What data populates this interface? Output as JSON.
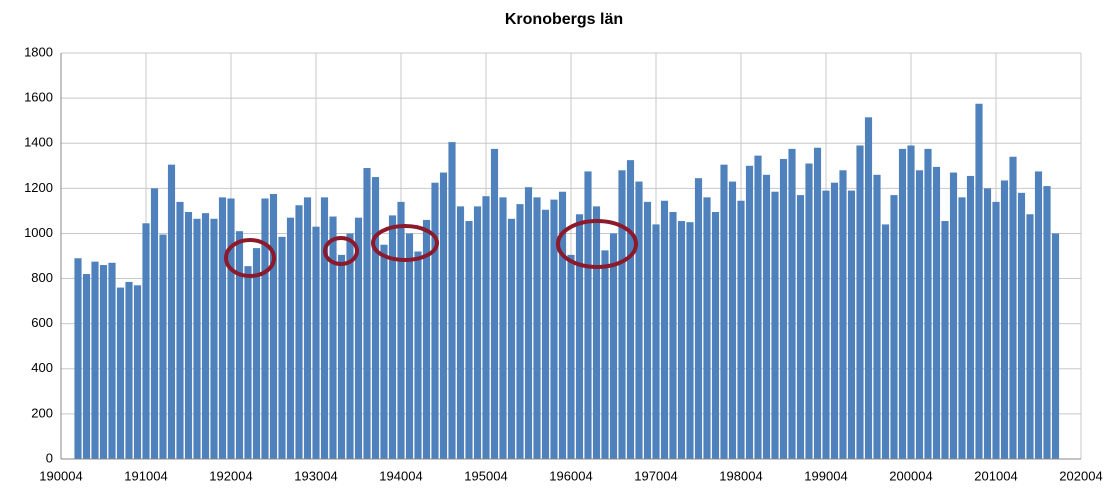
{
  "chart_data": {
    "type": "bar",
    "title": "Kronobergs län",
    "x": [
      190204,
      190304,
      190404,
      190504,
      190604,
      190704,
      190804,
      190904,
      191004,
      191104,
      191204,
      191304,
      191404,
      191504,
      191604,
      191704,
      191804,
      191904,
      192004,
      192104,
      192204,
      192304,
      192404,
      192504,
      192604,
      192704,
      192804,
      192904,
      193004,
      193104,
      193204,
      193304,
      193404,
      193504,
      193604,
      193704,
      193804,
      193904,
      194004,
      194104,
      194204,
      194304,
      194404,
      194504,
      194604,
      194704,
      194804,
      194904,
      195004,
      195104,
      195204,
      195304,
      195404,
      195504,
      195604,
      195704,
      195804,
      195904,
      196004,
      196104,
      196204,
      196304,
      196404,
      196504,
      196604,
      196704,
      196804,
      196904,
      197004,
      197104,
      197204,
      197304,
      197404,
      197504,
      197604,
      197704,
      197804,
      197904,
      198004,
      198104,
      198204,
      198304,
      198404,
      198504,
      198604,
      198704,
      198804,
      198904,
      199004,
      199104,
      199204,
      199304,
      199404,
      199504,
      199604,
      199704,
      199804,
      199904,
      200004,
      200104,
      200204,
      200304,
      200404,
      200504,
      200604,
      200704,
      200804,
      200904,
      201004,
      201104,
      201204,
      201304,
      201404,
      201504,
      201604,
      201704
    ],
    "values": [
      890,
      820,
      875,
      860,
      870,
      760,
      785,
      770,
      1045,
      1200,
      995,
      1305,
      1140,
      1095,
      1065,
      1090,
      1065,
      1160,
      1155,
      1010,
      855,
      935,
      1155,
      1175,
      985,
      1070,
      1125,
      1160,
      1030,
      1160,
      1075,
      905,
      1000,
      1070,
      1290,
      1250,
      950,
      1080,
      1140,
      1000,
      920,
      1060,
      1225,
      1270,
      1405,
      1120,
      1055,
      1120,
      1165,
      1375,
      1160,
      1065,
      1130,
      1205,
      1160,
      1105,
      1150,
      1185,
      905,
      1085,
      1275,
      1120,
      925,
      1000,
      1280,
      1325,
      1230,
      1140,
      1040,
      1145,
      1095,
      1055,
      1050,
      1245,
      1160,
      1095,
      1305,
      1230,
      1145,
      1300,
      1345,
      1260,
      1185,
      1330,
      1375,
      1170,
      1310,
      1380,
      1190,
      1225,
      1280,
      1190,
      1390,
      1515,
      1260,
      1040,
      1170,
      1375,
      1390,
      1280,
      1375,
      1295,
      1055,
      1270,
      1160,
      1255,
      1575,
      1200,
      1140,
      1235,
      1340,
      1180,
      1085,
      1275,
      1210,
      1000
    ],
    "color": "#4f81bd",
    "xlim": [
      190004,
      202004
    ],
    "xticks": [
      190004,
      191004,
      192004,
      193004,
      194004,
      195004,
      196004,
      197004,
      198004,
      199004,
      200004,
      201004,
      202004
    ],
    "ylim": [
      0,
      1800
    ],
    "yticks": [
      0,
      200,
      400,
      600,
      800,
      1000,
      1200,
      1400,
      1600,
      1800
    ],
    "grid": true
  }
}
